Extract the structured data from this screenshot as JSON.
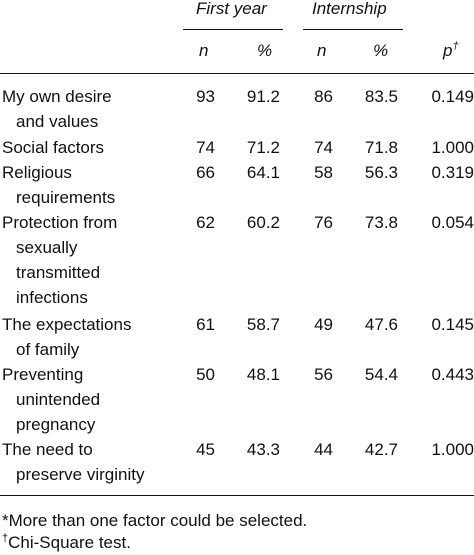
{
  "header": {
    "groups": [
      "First year",
      "Internship"
    ],
    "subcolumns": [
      "n",
      "%",
      "n",
      "%"
    ],
    "p_label": "p",
    "p_sup": "†"
  },
  "rows": [
    {
      "label": [
        "My own desire",
        "and values"
      ],
      "values": [
        "93",
        "91.2",
        "86",
        "83.5",
        "0.149"
      ]
    },
    {
      "label": [
        "Social factors"
      ],
      "values": [
        "74",
        "71.2",
        "74",
        "71.8",
        "1.000"
      ]
    },
    {
      "label": [
        "Religious",
        "requirements"
      ],
      "values": [
        "66",
        "64.1",
        "58",
        "56.3",
        "0.319"
      ]
    },
    {
      "label": [
        "Protection from",
        "sexually",
        "transmitted",
        "infections"
      ],
      "values": [
        "62",
        "60.2",
        "76",
        "73.8",
        "0.054"
      ]
    },
    {
      "label": [
        "The expectations",
        "of family"
      ],
      "values": [
        "61",
        "58.7",
        "49",
        "47.6",
        "0.145"
      ]
    },
    {
      "label": [
        "Preventing",
        "unintended",
        "pregnancy"
      ],
      "values": [
        "50",
        "48.1",
        "56",
        "54.4",
        "0.443"
      ]
    },
    {
      "label": [
        "The need to",
        "preserve virginity"
      ],
      "values": [
        "45",
        "43.3",
        "44",
        "42.7",
        "1.000"
      ]
    }
  ],
  "footnotes": {
    "note1_mark": "*",
    "note1_text": "More than one factor could be selected.",
    "note2_mark": "†",
    "note2_text": "Chi-Square test."
  }
}
